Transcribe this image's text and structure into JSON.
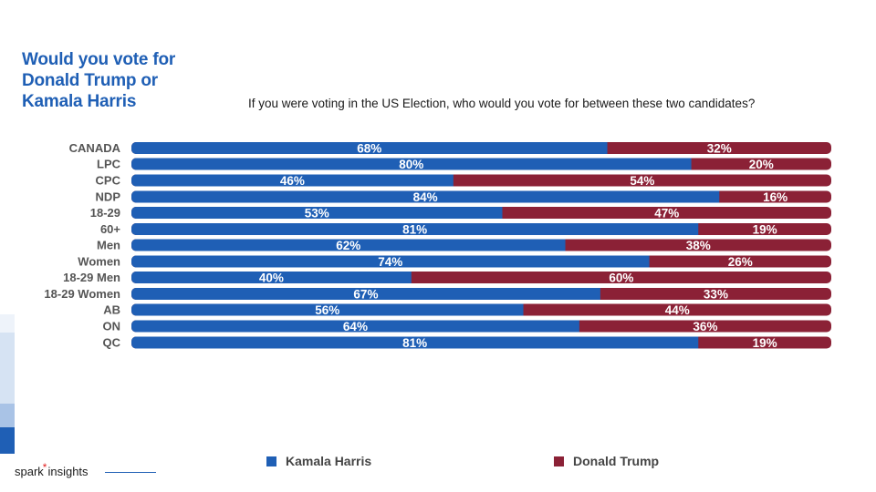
{
  "title_lines": [
    "Would you vote for",
    "Donald Trump or",
    "Kamala Harris"
  ],
  "subtitle": "If you were voting in the US Election, who would you vote for between these two candidates?",
  "colors": {
    "harris": "#1f5fb5",
    "trump": "#8b2136",
    "accent": "#1f5fb5"
  },
  "legend": [
    {
      "label": "Kamala Harris",
      "color": "#1f5fb5"
    },
    {
      "label": "Donald Trump",
      "color": "#8b2136"
    }
  ],
  "brand": {
    "name": "spark",
    "mark": "*",
    "suffix": "insights"
  },
  "chart_data": {
    "type": "bar",
    "orientation": "horizontal",
    "stacked": true,
    "percent_scale": true,
    "categories": [
      "CANADA",
      "LPC",
      "CPC",
      "NDP",
      "18-29",
      "60+",
      "Men",
      "Women",
      "18-29 Men",
      "18-29 Women",
      "AB",
      "ON",
      "QC"
    ],
    "groups": [
      [
        0
      ],
      [
        1,
        2,
        3
      ],
      [
        4,
        5
      ],
      [
        6,
        7
      ],
      [
        8,
        9
      ],
      [
        10,
        11,
        12
      ]
    ],
    "series": [
      {
        "name": "Kamala Harris",
        "color": "#1f5fb5",
        "values": [
          68,
          80,
          46,
          84,
          53,
          81,
          62,
          74,
          40,
          67,
          56,
          64,
          81
        ]
      },
      {
        "name": "Donald Trump",
        "color": "#8b2136",
        "values": [
          32,
          20,
          54,
          16,
          47,
          19,
          38,
          26,
          60,
          33,
          44,
          36,
          19
        ]
      }
    ],
    "value_suffix": "%",
    "xlim": [
      0,
      100
    ],
    "legend_position": "bottom",
    "grid": false
  }
}
